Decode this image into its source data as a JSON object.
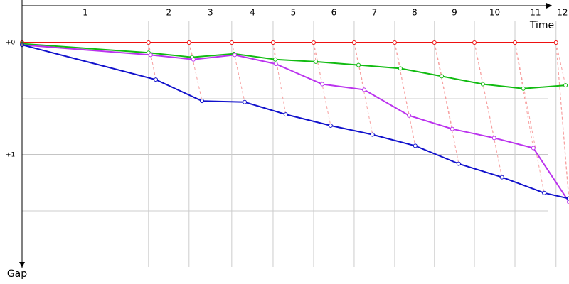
{
  "chart_data": {
    "type": "line",
    "x_label": "Time",
    "y_label": "Gap",
    "laps": [
      "1",
      "2",
      "3",
      "4",
      "5",
      "6",
      "7",
      "8",
      "9",
      "10",
      "11",
      "12"
    ],
    "lap_lines": [
      4.68,
      6.18,
      7.76,
      9.29,
      10.79,
      12.29,
      13.79,
      15.26,
      16.74,
      18.24,
      19.76
    ],
    "xlim": [
      0,
      20.24
    ],
    "ylim": [
      -0.38,
      2.0
    ],
    "yticks": [
      {
        "value": 0,
        "label": "+0'"
      },
      {
        "value": 1,
        "label": "+1'"
      }
    ],
    "minor_grid": [
      0.5,
      1.5
    ],
    "series": [
      {
        "color": "#ee1111",
        "x": [
          0,
          4.68,
          6.18,
          7.76,
          9.29,
          10.79,
          12.29,
          13.79,
          15.26,
          16.74,
          18.24,
          19.76
        ],
        "values": [
          0,
          0,
          0,
          0,
          0,
          0,
          0,
          0,
          0,
          0,
          0,
          0
        ]
      },
      {
        "color": "#11bb11",
        "x": [
          0,
          4.68,
          6.29,
          7.84,
          9.37,
          10.87,
          12.45,
          14.0,
          15.53,
          17.05,
          18.55,
          20.11
        ],
        "values": [
          0.01,
          0.09,
          0.13,
          0.1,
          0.15,
          0.17,
          0.2,
          0.23,
          0.3,
          0.37,
          0.41,
          0.38
        ]
      },
      {
        "color": "#bb33ee",
        "x": [
          0,
          4.76,
          6.34,
          7.87,
          9.39,
          11.11,
          12.66,
          14.32,
          15.92,
          17.47,
          18.92,
          20.24
        ],
        "values": [
          0.02,
          0.11,
          0.15,
          0.11,
          0.19,
          0.37,
          0.42,
          0.65,
          0.77,
          0.85,
          0.94,
          1.42
        ]
      },
      {
        "color": "#1111cc",
        "x": [
          0,
          4.95,
          6.66,
          8.24,
          9.76,
          11.42,
          12.97,
          14.55,
          16.16,
          17.76,
          19.32,
          20.24
        ],
        "values": [
          0.02,
          0.33,
          0.52,
          0.53,
          0.64,
          0.74,
          0.82,
          0.92,
          1.08,
          1.2,
          1.34,
          1.39
        ]
      }
    ]
  }
}
